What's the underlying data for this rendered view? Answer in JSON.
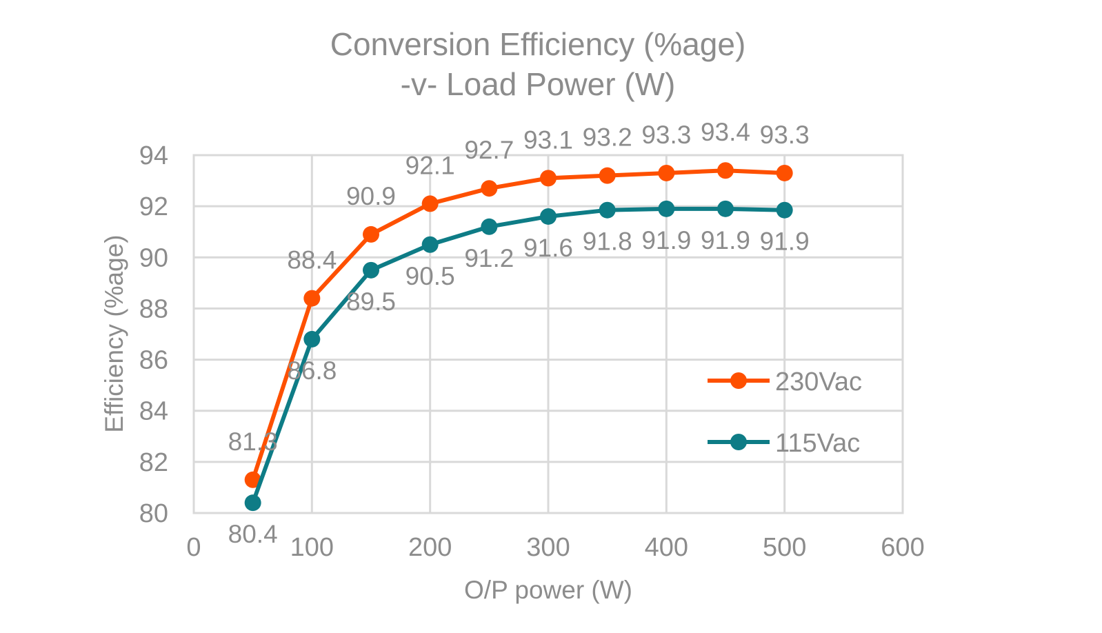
{
  "chart_data": {
    "type": "line",
    "title": [
      "Conversion Efficiency (%age)",
      "-v- Load Power (W)"
    ],
    "xlabel": "O/P power (W)",
    "ylabel": "Efficiency (%age)",
    "xlim": [
      0,
      600
    ],
    "ylim": [
      80,
      94
    ],
    "x_ticks": [
      "0",
      "100",
      "200",
      "300",
      "400",
      "500",
      "600"
    ],
    "y_ticks": [
      "80",
      "82",
      "84",
      "86",
      "88",
      "90",
      "92",
      "94"
    ],
    "grid": true,
    "legend_position": "right",
    "x": [
      50,
      100,
      150,
      200,
      250,
      300,
      350,
      400,
      450,
      500
    ],
    "series": [
      {
        "name": "230Vac",
        "color": "#fe5000",
        "values": [
          81.3,
          88.4,
          90.9,
          92.1,
          92.7,
          93.1,
          93.2,
          93.3,
          93.4,
          93.3
        ],
        "labels": [
          "81.3",
          "88.4",
          "90.9",
          "92.1",
          "92.7",
          "93.1",
          "93.2",
          "93.3",
          "93.4",
          "93.3"
        ]
      },
      {
        "name": "115Vac",
        "color": "#0e7c86",
        "values": [
          80.4,
          86.8,
          89.5,
          90.5,
          91.2,
          91.6,
          91.85,
          91.9,
          91.9,
          91.85
        ],
        "labels": [
          "80.4",
          "86.8",
          "89.5",
          "90.5",
          "91.2",
          "91.6",
          "91.8",
          "91.9",
          "91.9",
          "91.9"
        ]
      }
    ]
  }
}
